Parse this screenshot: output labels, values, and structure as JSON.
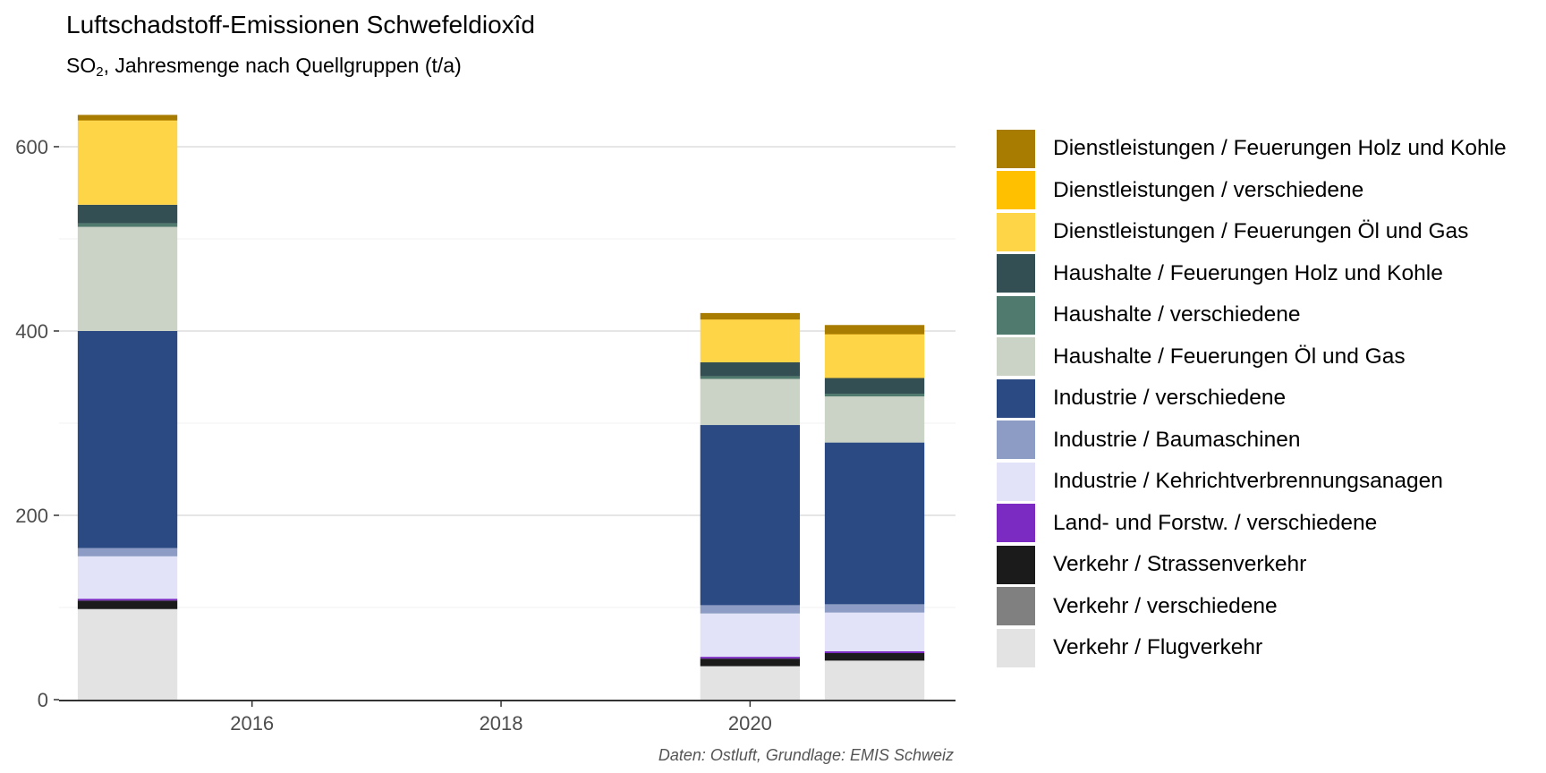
{
  "title": "Luftschadstoff-Emissionen Schwefeldioxîd",
  "subtitle": {
    "prefix": "SO",
    "subscript": "2",
    "suffix": ", Jahresmenge nach Quellgruppen (t/a)"
  },
  "caption": "Daten: Ostluft, Grundlage: EMIS Schweiz",
  "chart_data": {
    "type": "bar",
    "stacked": true,
    "title": "Luftschadstoff-Emissionen Schwefeldioxîd",
    "subtitle": "SO2, Jahresmenge nach Quellgruppen (t/a)",
    "xlabel": "",
    "ylabel": "",
    "x_ticks": [
      "2016",
      "2018",
      "2020"
    ],
    "y_ticks": [
      "0",
      "200",
      "400",
      "600"
    ],
    "xlim": [
      2014.45,
      2021.65
    ],
    "ylim": [
      0,
      665
    ],
    "grid": true,
    "legend_position": "right",
    "categories": [
      "2015",
      "2020",
      "2021"
    ],
    "series": [
      {
        "name": "Verkehr / Flugverkehr",
        "color": "#E3E3E3",
        "values": [
          98,
          36,
          42
        ]
      },
      {
        "name": "Verkehr / verschiedene",
        "color": "#808080",
        "values": [
          0.5,
          0.5,
          0.5
        ]
      },
      {
        "name": "Verkehr / Strassenverkehr",
        "color": "#1B1B1B",
        "values": [
          9,
          8,
          8
        ]
      },
      {
        "name": "Land- und Forstw. / verschiedene",
        "color": "#7B2BC2",
        "values": [
          2,
          2,
          2
        ]
      },
      {
        "name": "Industrie / Kehrichtverbrennungsanagen",
        "color": "#E2E2F8",
        "values": [
          46,
          47,
          42
        ]
      },
      {
        "name": "Industrie / Baumaschinen",
        "color": "#8C9CC4",
        "values": [
          9,
          9,
          9
        ]
      },
      {
        "name": "Industrie / verschiedene",
        "color": "#2B4A84",
        "values": [
          235.5,
          195.5,
          175.5
        ]
      },
      {
        "name": "Haushalte / Feuerungen Öl und Gas",
        "color": "#CBD3C6",
        "values": [
          113,
          50,
          50
        ]
      },
      {
        "name": "Haushalte / verschiedene",
        "color": "#517A6E",
        "values": [
          4,
          3,
          3
        ]
      },
      {
        "name": "Haushalte / Feuerungen Holz und Kohle",
        "color": "#334F53",
        "values": [
          20,
          15,
          17
        ]
      },
      {
        "name": "Dienstleistungen / Feuerungen Öl und Gas",
        "color": "#FFD548",
        "values": [
          91,
          46,
          47
        ]
      },
      {
        "name": "Dienstleistungen / verschiedene",
        "color": "#FFC000",
        "values": [
          0.5,
          0.5,
          0.5
        ]
      },
      {
        "name": "Dienstleistungen / Feuerungen Holz und Kohle",
        "color": "#A87C00",
        "values": [
          6,
          7,
          10
        ]
      }
    ]
  }
}
